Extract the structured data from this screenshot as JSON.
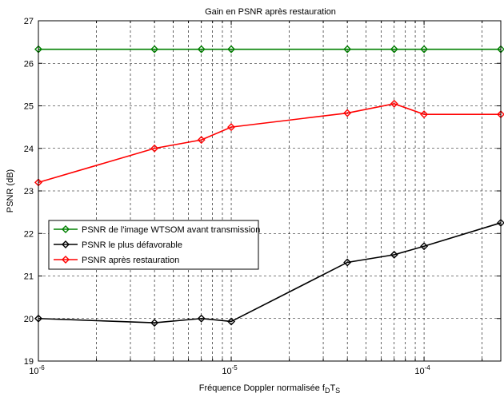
{
  "chart_data": {
    "type": "line",
    "title": "Gain en PSNR après restauration",
    "xlabel": "Fréquence Doppler normalisée f",
    "xlabel_sub1": "D",
    "xlabel_mid": "T",
    "xlabel_sub2": "S",
    "ylabel": "PSNR (dB)",
    "x_scale": "log",
    "xlim": [
      1e-06,
      0.00025
    ],
    "ylim": [
      19,
      27
    ],
    "grid": true,
    "legend_position": "left-middle",
    "x_ticks": [
      {
        "value": 1e-06,
        "base": "10",
        "exp": "-6"
      },
      {
        "value": 1e-05,
        "base": "10",
        "exp": "-5"
      },
      {
        "value": 0.0001,
        "base": "10",
        "exp": "-4"
      }
    ],
    "y_ticks": [
      "19",
      "20",
      "21",
      "22",
      "23",
      "24",
      "25",
      "26",
      "27"
    ],
    "series": [
      {
        "name": "PSNR de l'image WTSOM avant transmission",
        "color": "#008000",
        "x": [
          1e-06,
          4e-06,
          7e-06,
          1e-05,
          4e-05,
          7e-05,
          0.0001,
          0.00025
        ],
        "values": [
          26.33,
          26.33,
          26.33,
          26.33,
          26.33,
          26.33,
          26.33,
          26.33
        ]
      },
      {
        "name": "PSNR le plus défavorable",
        "color": "#000000",
        "x": [
          1e-06,
          4e-06,
          7e-06,
          1e-05,
          4e-05,
          7e-05,
          0.0001,
          0.00025
        ],
        "values": [
          20.0,
          19.9,
          20.0,
          19.93,
          21.32,
          21.5,
          21.7,
          22.25
        ]
      },
      {
        "name": "PSNR après restauration",
        "color": "#ff0000",
        "x": [
          1e-06,
          4e-06,
          7e-06,
          1e-05,
          4e-05,
          7e-05,
          0.0001,
          0.00025
        ],
        "values": [
          23.2,
          24.0,
          24.2,
          24.5,
          24.83,
          25.05,
          24.8,
          24.8
        ]
      }
    ]
  }
}
